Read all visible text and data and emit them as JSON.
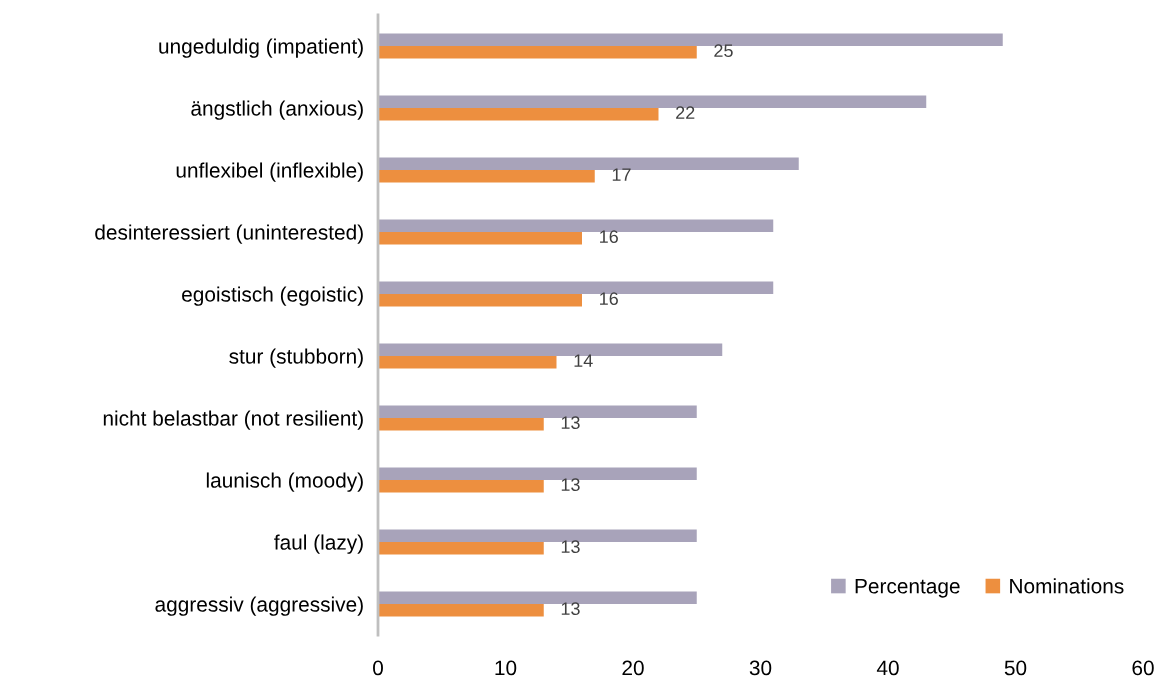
{
  "chart_data": {
    "type": "bar",
    "orientation": "horizontal",
    "categories": [
      "ungeduldig (impatient)",
      "ängstlich (anxious)",
      "unflexibel (inflexible)",
      "desinteressiert (uninterested)",
      "egoistisch (egoistic)",
      "stur (stubborn)",
      "nicht belastbar (not resilient)",
      "launisch (moody)",
      "faul (lazy)",
      "aggressiv (aggressive)"
    ],
    "series": [
      {
        "name": "Percentage",
        "color": "#a8a3ba",
        "values": [
          49,
          43,
          33,
          31,
          31,
          27,
          25,
          25,
          25,
          25
        ]
      },
      {
        "name": "Nominations",
        "color": "#ed8f3f",
        "values": [
          25,
          22,
          17,
          16,
          16,
          14,
          13,
          13,
          13,
          13
        ],
        "value_labels": [
          "25",
          "22",
          "17",
          "16",
          "16",
          "14",
          "13",
          "13",
          "13",
          "13"
        ]
      }
    ],
    "xlim": [
      0,
      60
    ],
    "xticks": [
      0,
      10,
      20,
      30,
      40,
      50,
      60
    ],
    "grid": false,
    "legend": "bottom right"
  }
}
